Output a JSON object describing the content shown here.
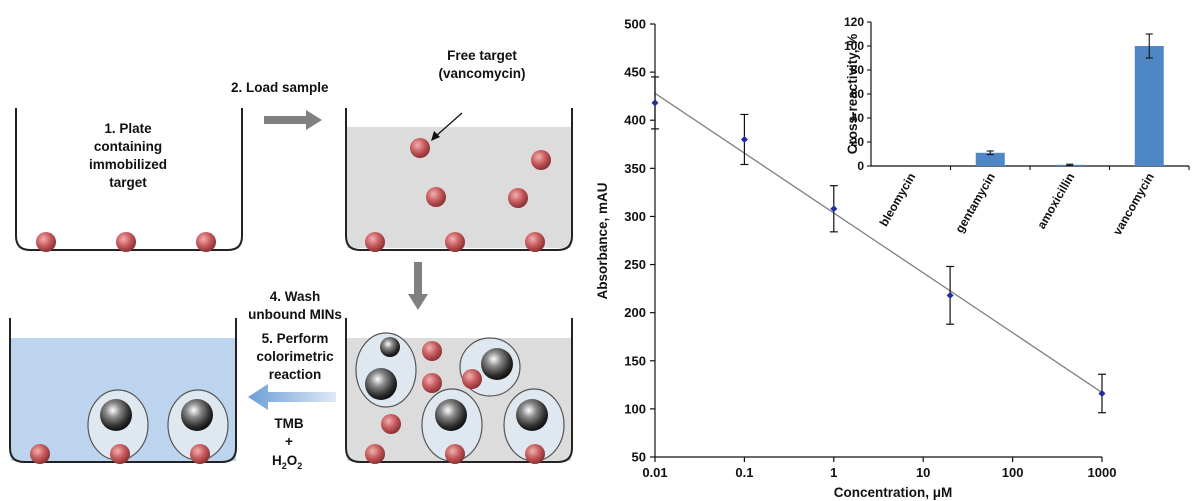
{
  "colors": {
    "bead": "#c0585c",
    "liquid_gray": "#dcdcdc",
    "liquid_blue": "#bcd4ee",
    "mip_shell": "#dfe8f0",
    "arrow": "#808080",
    "point": "#1f2f9e",
    "fit_line": "#7f7f7f",
    "bar": "#4f86c6"
  },
  "schematic": {
    "step1": [
      "1. Plate",
      "containing",
      "immobilized",
      "target"
    ],
    "step2": "2. Load sample",
    "free_target": [
      "Free target",
      "(vancomycin)"
    ],
    "step4": [
      "4. Wash",
      "unbound MINs"
    ],
    "step5": [
      "5. Perform",
      "colorimetric",
      "reaction"
    ],
    "reagents": [
      "TMB",
      "+"
    ],
    "h2o2_base": "H",
    "h2o2_sub": "2",
    "h2o2_mid": "O",
    "h2o2_sub2": "2"
  },
  "chart_data": [
    {
      "type": "scatter",
      "xlabel": "Concentration, μM",
      "ylabel": "Absorbance, mAU",
      "xscale": "log",
      "xlim": [
        0.01,
        1000
      ],
      "ylim": [
        50,
        500
      ],
      "xticks": [
        "0.01",
        "0.1",
        "1",
        "10",
        "100",
        "1000"
      ],
      "yticks": [
        "50",
        "100",
        "150",
        "200",
        "250",
        "300",
        "350",
        "400",
        "450",
        "500"
      ],
      "points": [
        {
          "x": 0.01,
          "y": 418,
          "err": 27
        },
        {
          "x": 0.1,
          "y": 380,
          "err": 26
        },
        {
          "x": 1,
          "y": 308,
          "err": 24
        },
        {
          "x": 20,
          "y": 218,
          "err": 30
        },
        {
          "x": 1000,
          "y": 116,
          "err": 20
        }
      ],
      "trendline": {
        "x": [
          0.01,
          1000
        ],
        "y": [
          428,
          117
        ]
      }
    },
    {
      "type": "bar",
      "ylabel": "Cross-reactivity, %",
      "ylim": [
        0,
        120
      ],
      "yticks": [
        "0",
        "20",
        "40",
        "60",
        "80",
        "100",
        "120"
      ],
      "categories": [
        "bleomycin",
        "gentamycin",
        "amoxicillin",
        "vancomycin"
      ],
      "values": [
        0,
        11,
        1,
        100
      ],
      "errors": [
        0,
        1.5,
        0.5,
        10
      ]
    }
  ]
}
